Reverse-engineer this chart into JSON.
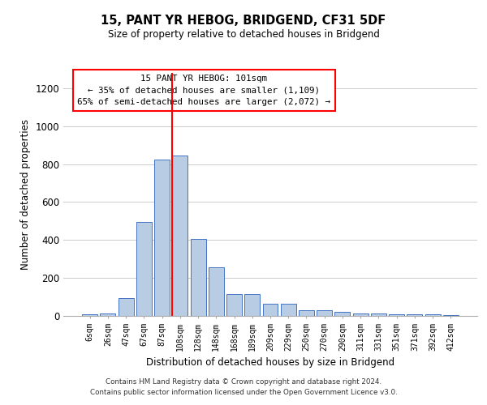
{
  "title1": "15, PANT YR HEBOG, BRIDGEND, CF31 5DF",
  "title2": "Size of property relative to detached houses in Bridgend",
  "xlabel": "Distribution of detached houses by size in Bridgend",
  "ylabel": "Number of detached properties",
  "bar_labels": [
    "6sqm",
    "26sqm",
    "47sqm",
    "67sqm",
    "87sqm",
    "108sqm",
    "128sqm",
    "148sqm",
    "168sqm",
    "189sqm",
    "209sqm",
    "229sqm",
    "250sqm",
    "270sqm",
    "290sqm",
    "311sqm",
    "331sqm",
    "351sqm",
    "371sqm",
    "392sqm",
    "412sqm"
  ],
  "bar_values": [
    10,
    12,
    95,
    495,
    825,
    845,
    405,
    255,
    115,
    115,
    65,
    65,
    30,
    30,
    22,
    13,
    13,
    8,
    8,
    8,
    5
  ],
  "bar_color": "#b8cce4",
  "bar_edge_color": "#4472c4",
  "ylim": [
    0,
    1280
  ],
  "yticks": [
    0,
    200,
    400,
    600,
    800,
    1000,
    1200
  ],
  "property_label": "15 PANT YR HEBOG: 101sqm",
  "annotation_line1": "← 35% of detached houses are smaller (1,109)",
  "annotation_line2": "65% of semi-detached houses are larger (2,072) →",
  "vline_pos": 4.575,
  "footnote1": "Contains HM Land Registry data © Crown copyright and database right 2024.",
  "footnote2": "Contains public sector information licensed under the Open Government Licence v3.0."
}
